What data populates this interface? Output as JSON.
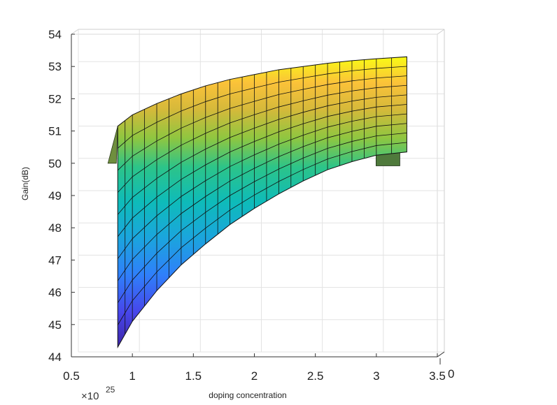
{
  "chart_data": {
    "type": "surface",
    "title": "",
    "xlabel": "doping concentration",
    "ylabel": "Gain(dB)",
    "x_exponent": {
      "base": "×10",
      "power": "25"
    },
    "depth_axis_label": "0",
    "xlim": [
      0.5,
      3.5
    ],
    "ylim": [
      44,
      54
    ],
    "x_ticks": [
      "0.5",
      "1",
      "1.5",
      "2",
      "2.5",
      "3",
      "3.5"
    ],
    "y_ticks": [
      "44",
      "45",
      "46",
      "47",
      "48",
      "49",
      "50",
      "51",
      "52",
      "53",
      "54"
    ],
    "grid": true,
    "colormap": "parula",
    "x_range_data": [
      0.88,
      3.25
    ],
    "surface_top_edge": {
      "x": [
        0.88,
        1.0,
        1.2,
        1.4,
        1.6,
        1.8,
        2.0,
        2.2,
        2.4,
        2.6,
        2.8,
        3.0,
        3.25
      ],
      "gain": [
        51.15,
        51.5,
        51.85,
        52.15,
        52.4,
        52.6,
        52.75,
        52.9,
        53.0,
        53.1,
        53.18,
        53.24,
        53.3
      ]
    },
    "surface_bottom_edge": {
      "x": [
        0.88,
        1.0,
        1.2,
        1.4,
        1.6,
        1.8,
        2.0,
        2.2,
        2.4,
        2.6,
        2.8,
        3.0,
        3.25
      ],
      "gain": [
        44.3,
        45.1,
        46.05,
        46.85,
        47.5,
        48.1,
        48.6,
        49.05,
        49.45,
        49.8,
        50.05,
        50.25,
        50.35
      ]
    }
  }
}
